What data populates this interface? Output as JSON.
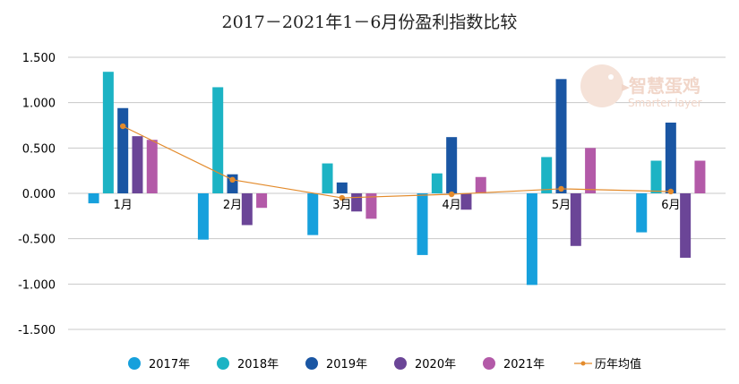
{
  "chart_data": {
    "type": "bar",
    "title": "2017－2021年1－6月份盈利指数比较",
    "categories": [
      "1月",
      "2月",
      "3月",
      "4月",
      "5月",
      "6月"
    ],
    "ylim": [
      -1.5,
      1.5
    ],
    "y_ticks": [
      "1.500",
      "1.000",
      "0.500",
      "0.000",
      "-0.500",
      "-1.000",
      "-1.500"
    ],
    "grid": true,
    "legend_position": "bottom",
    "series": [
      {
        "name": "2017年",
        "color": "#16a0dc",
        "values": [
          -0.11,
          -0.51,
          -0.46,
          -0.68,
          -1.01,
          -0.43
        ]
      },
      {
        "name": "2018年",
        "color": "#1cb3c4",
        "values": [
          1.34,
          1.17,
          0.33,
          0.22,
          0.4,
          0.36
        ]
      },
      {
        "name": "2019年",
        "color": "#1a56a3",
        "values": [
          0.94,
          0.21,
          0.12,
          0.62,
          1.26,
          0.78
        ]
      },
      {
        "name": "2020年",
        "color": "#6b4597",
        "values": [
          0.63,
          -0.35,
          -0.2,
          -0.18,
          -0.58,
          -0.71
        ]
      },
      {
        "name": "2021年",
        "color": "#b35aa8",
        "values": [
          0.59,
          -0.16,
          -0.28,
          0.18,
          0.5,
          0.36
        ]
      }
    ],
    "line_series": {
      "name": "历年均值",
      "color": "#e38b2c",
      "values": [
        0.74,
        0.15,
        -0.05,
        -0.01,
        0.05,
        0.02
      ]
    }
  },
  "watermark": {
    "text_cn": "智慧蛋鸡",
    "text_en": "Smarter layer",
    "icon": "chicken-logo-icon"
  }
}
